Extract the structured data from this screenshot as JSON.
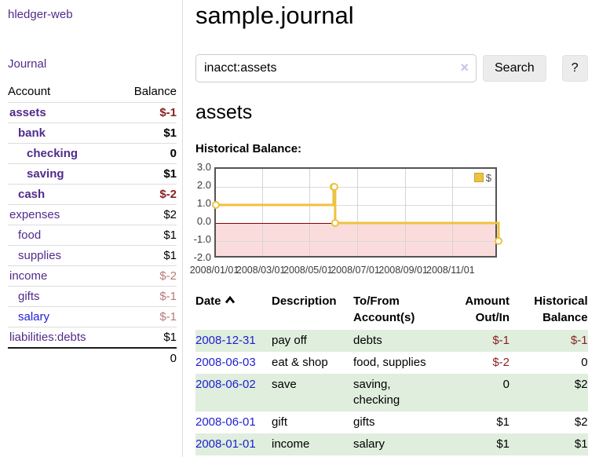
{
  "app": {
    "title": "hledger-web",
    "nav_journal": "Journal"
  },
  "sidebar": {
    "header": {
      "account": "Account",
      "balance": "Balance"
    },
    "accounts": [
      {
        "name": "assets",
        "balance": "$-1",
        "depth": 1,
        "bold": true,
        "neg": true,
        "muted": false,
        "blue": false
      },
      {
        "name": "bank",
        "balance": "$1",
        "depth": 2,
        "bold": true,
        "neg": false,
        "muted": false,
        "blue": false
      },
      {
        "name": "checking",
        "balance": "0",
        "depth": 3,
        "bold": true,
        "neg": false,
        "muted": false,
        "blue": false
      },
      {
        "name": "saving",
        "balance": "$1",
        "depth": 3,
        "bold": true,
        "neg": false,
        "muted": false,
        "blue": false
      },
      {
        "name": "cash",
        "balance": "$-2",
        "depth": 2,
        "bold": true,
        "neg": true,
        "muted": false,
        "blue": false
      },
      {
        "name": "expenses",
        "balance": "$2",
        "depth": 1,
        "bold": false,
        "neg": false,
        "muted": false,
        "blue": false
      },
      {
        "name": "food",
        "balance": "$1",
        "depth": 2,
        "bold": false,
        "neg": false,
        "muted": false,
        "blue": false
      },
      {
        "name": "supplies",
        "balance": "$1",
        "depth": 2,
        "bold": false,
        "neg": false,
        "muted": false,
        "blue": false
      },
      {
        "name": "income",
        "balance": "$-2",
        "depth": 1,
        "bold": false,
        "neg": true,
        "muted": true,
        "blue": false
      },
      {
        "name": "gifts",
        "balance": "$-1",
        "depth": 2,
        "bold": false,
        "neg": true,
        "muted": true,
        "blue": false
      },
      {
        "name": "salary",
        "balance": "$-1",
        "depth": 2,
        "bold": false,
        "neg": true,
        "muted": true,
        "blue": true
      },
      {
        "name": "liabilities:debts",
        "balance": "$1",
        "depth": 1,
        "bold": false,
        "neg": false,
        "muted": false,
        "blue": false
      }
    ],
    "total": "0"
  },
  "main": {
    "title": "sample.journal",
    "account_heading": "assets",
    "chart_title": "Historical Balance:"
  },
  "search": {
    "value": "inacct:assets",
    "clear_icon": "×",
    "search_button": "Search",
    "help_button": "?"
  },
  "chart_data": {
    "type": "line",
    "title": "Historical Balance",
    "series": [
      {
        "name": "$",
        "color": "#edc240",
        "step": true,
        "points": [
          [
            "2008-01-01",
            1
          ],
          [
            "2008-06-01",
            2
          ],
          [
            "2008-06-02",
            2
          ],
          [
            "2008-06-03",
            0
          ],
          [
            "2008-12-31",
            -1
          ]
        ]
      }
    ],
    "x_range": [
      "2008-01-01",
      "2008-12-31"
    ],
    "x_ticks": [
      "2008/01/01",
      "2008/03/01",
      "2008/05/01",
      "2008/07/01",
      "2008/09/01",
      "2008/11/01"
    ],
    "y_ticks": [
      3,
      2,
      1,
      0,
      -1,
      -2
    ],
    "ylim": [
      -2,
      3
    ],
    "grid": true,
    "legend": {
      "label": "$",
      "position": "top-right"
    },
    "colors": {
      "negative_region": "#fbdcdc",
      "zero_line": "#8b0000",
      "plot_border": "#545454",
      "swatch_border": "#c5a335"
    }
  },
  "register": {
    "headers": [
      {
        "label": "Date"
      },
      {
        "label": "Description"
      },
      {
        "label": "To/From Account(s)"
      },
      {
        "label": "Amount Out/In"
      },
      {
        "label": "Historical Balance"
      }
    ],
    "rows": [
      {
        "date": "2008-12-31",
        "description": "pay off",
        "tofrom": "debts",
        "amount": "$-1",
        "amount_neg": true,
        "balance": "$-1",
        "balance_neg": true
      },
      {
        "date": "2008-06-03",
        "description": "eat & shop",
        "tofrom": "food, supplies",
        "amount": "$-2",
        "amount_neg": true,
        "balance": "0",
        "balance_neg": false
      },
      {
        "date": "2008-06-02",
        "description": "save",
        "tofrom": "saving,\nchecking",
        "amount": "0",
        "amount_neg": false,
        "balance": "$2",
        "balance_neg": false
      },
      {
        "date": "2008-06-01",
        "description": "gift",
        "tofrom": "gifts",
        "amount": "$1",
        "amount_neg": false,
        "balance": "$2",
        "balance_neg": false
      },
      {
        "date": "2008-01-01",
        "description": "income",
        "tofrom": "salary",
        "amount": "$1",
        "amount_neg": false,
        "balance": "$1",
        "balance_neg": false
      }
    ]
  },
  "colors": {
    "link_purple": "#512b8b",
    "link_blue": "#1f1fd1",
    "negative": "#8b1f1f",
    "negative_muted": "#b97979",
    "row_stripe": "#dfeedd",
    "button_bg": "#ececec"
  }
}
